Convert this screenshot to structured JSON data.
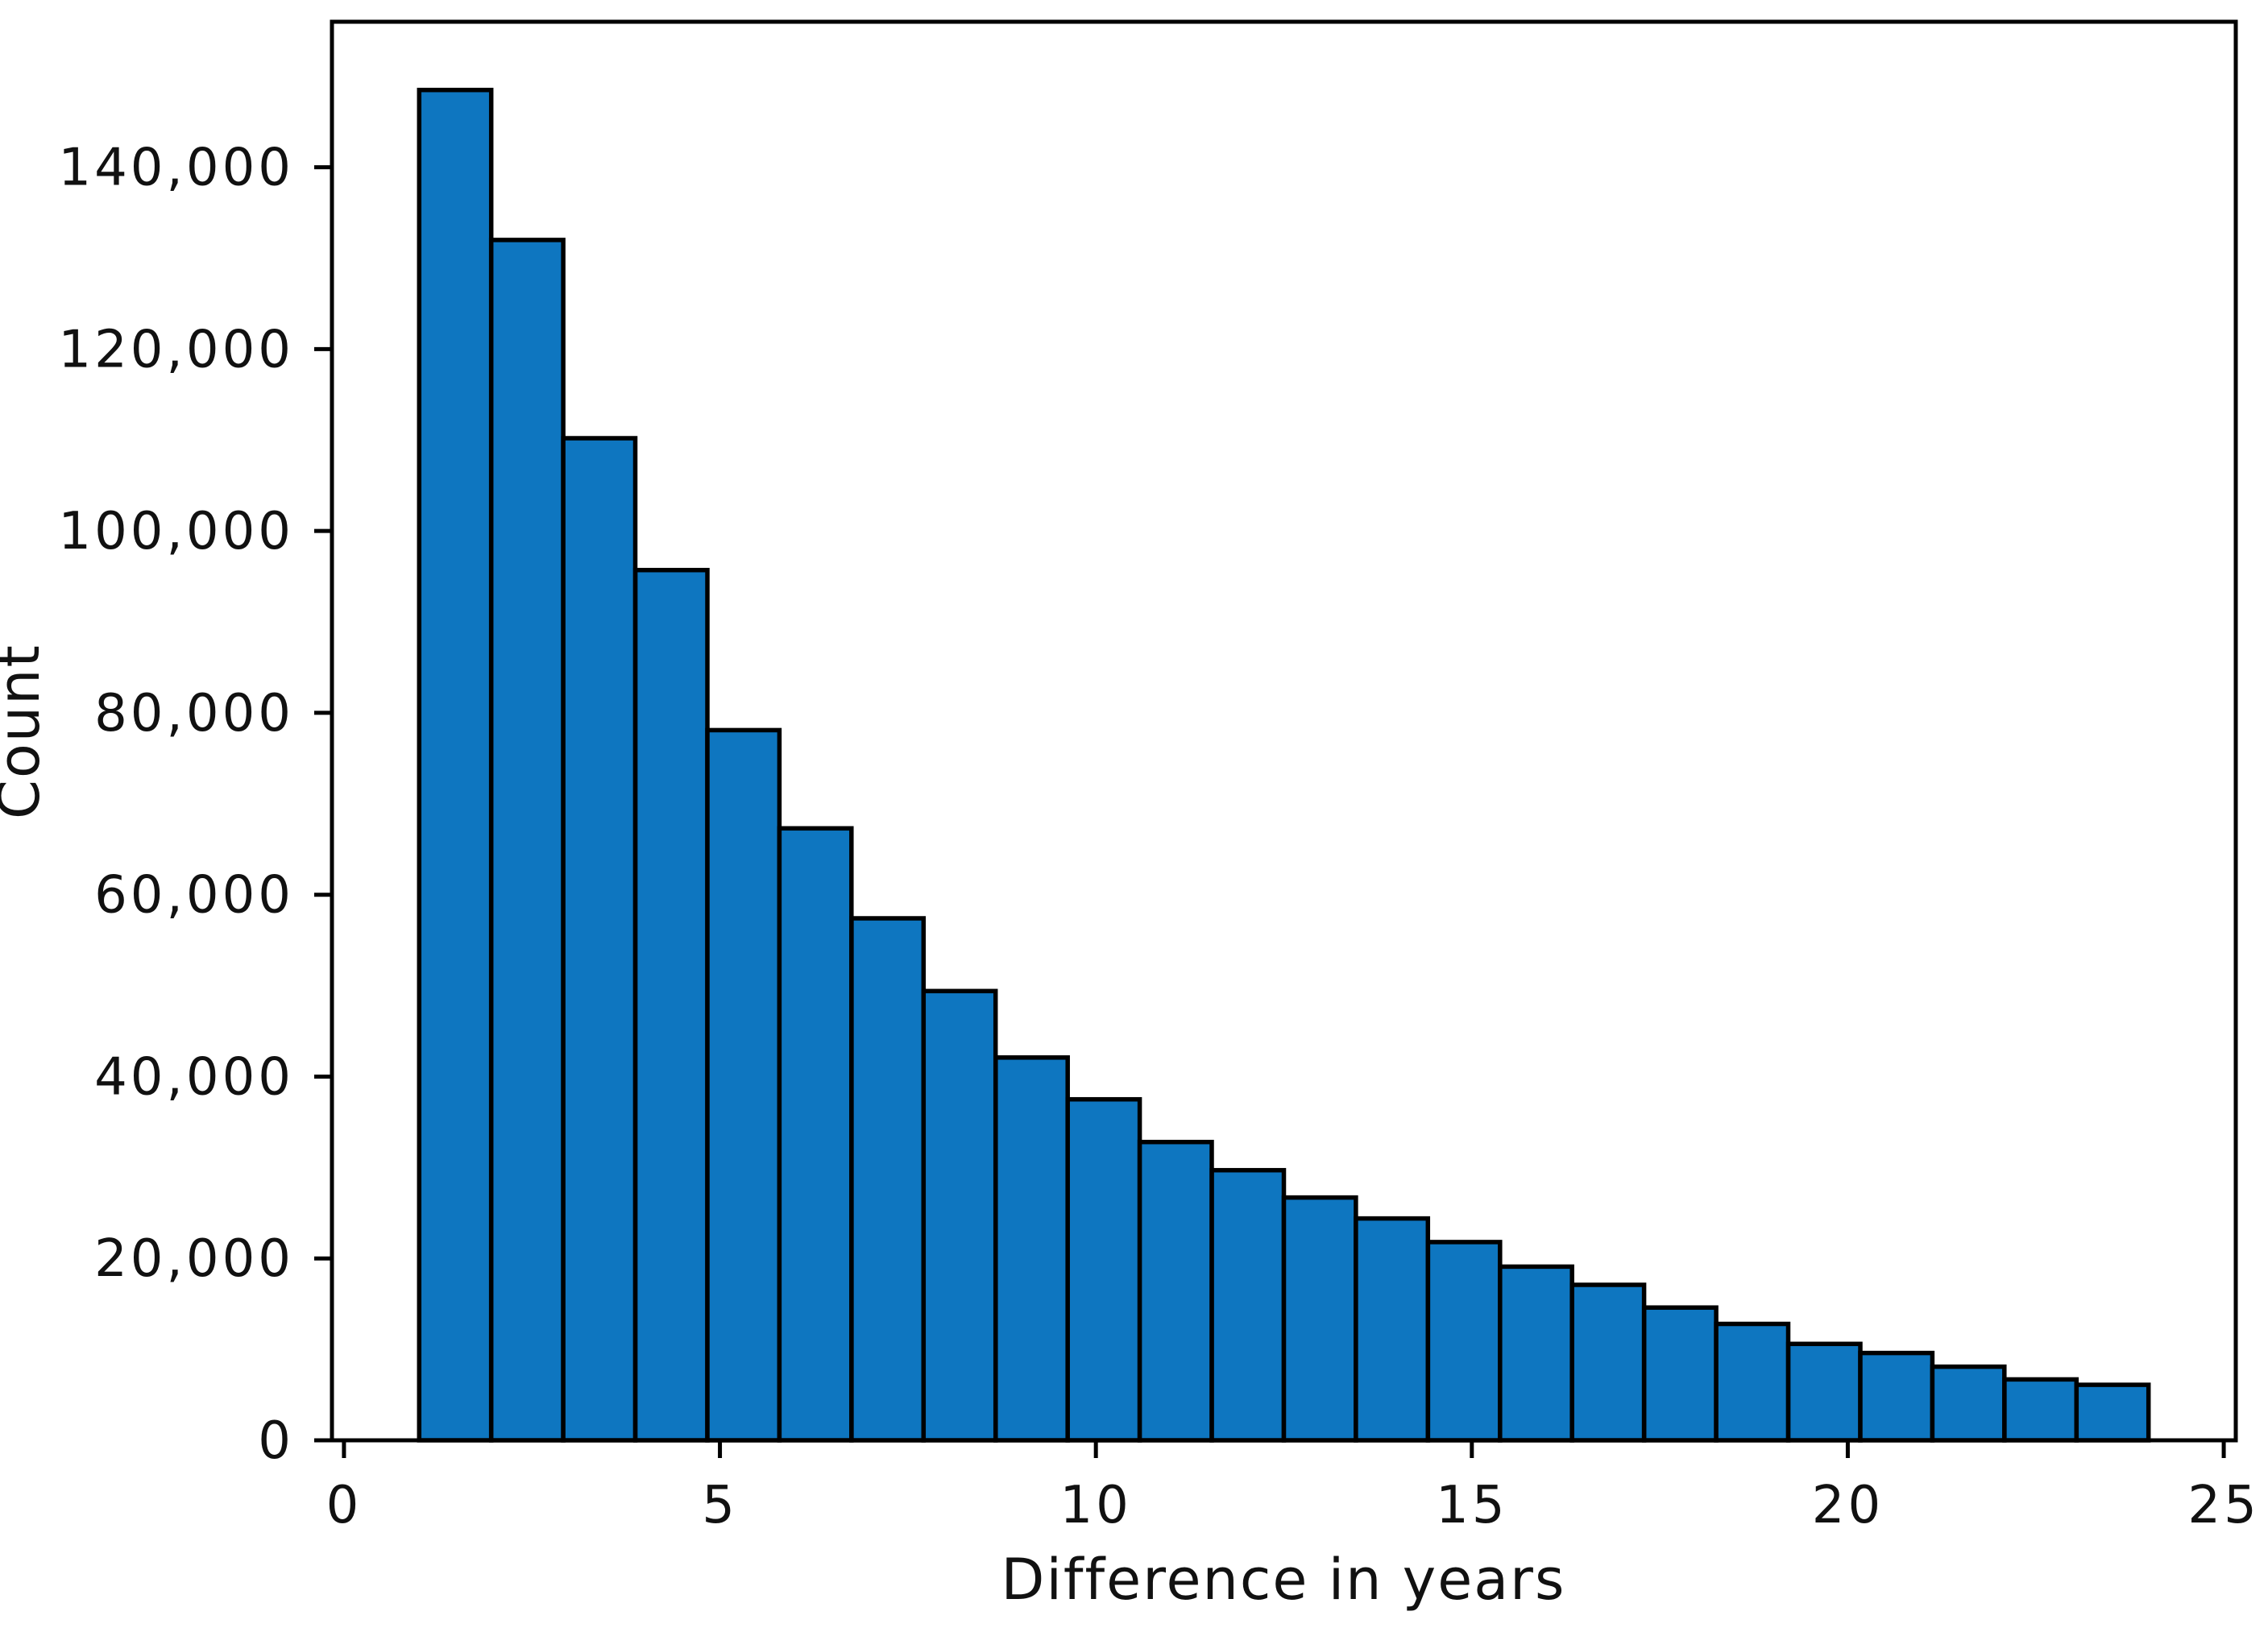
{
  "figure": {
    "background_color": "#ffffff"
  },
  "chart_data": {
    "type": "bar",
    "subtype": "histogram",
    "title": "",
    "xlabel": "Difference in years",
    "ylabel": "Count",
    "bar_color": "#0e76c0",
    "bar_edge_color": "#000000",
    "axis_color": "#000000",
    "text_color": "#111111",
    "grid": false,
    "legend": null,
    "xlim": [
      -0.16,
      25.16
    ],
    "ylim": [
      0,
      156000
    ],
    "bins": {
      "start": 1,
      "end": 24,
      "count": 24,
      "bin_width": 0.9583
    },
    "values": [
      148500,
      132000,
      110200,
      95700,
      78100,
      67300,
      57400,
      49400,
      42100,
      37500,
      32800,
      29700,
      26700,
      24400,
      21800,
      19100,
      17100,
      14600,
      12800,
      10600,
      9600,
      8100,
      6700,
      6100
    ],
    "x_ticks": [
      {
        "value": 0,
        "label": "0"
      },
      {
        "value": 5,
        "label": "5"
      },
      {
        "value": 10,
        "label": "10"
      },
      {
        "value": 15,
        "label": "15"
      },
      {
        "value": 20,
        "label": "20"
      },
      {
        "value": 25,
        "label": "25"
      }
    ],
    "y_ticks": [
      {
        "value": 0,
        "label": "0"
      },
      {
        "value": 20000,
        "label": "20,000"
      },
      {
        "value": 40000,
        "label": "40,000"
      },
      {
        "value": 60000,
        "label": "60,000"
      },
      {
        "value": 80000,
        "label": "80,000"
      },
      {
        "value": 100000,
        "label": "100,000"
      },
      {
        "value": 120000,
        "label": "120,000"
      },
      {
        "value": 140000,
        "label": "140,000"
      }
    ]
  }
}
